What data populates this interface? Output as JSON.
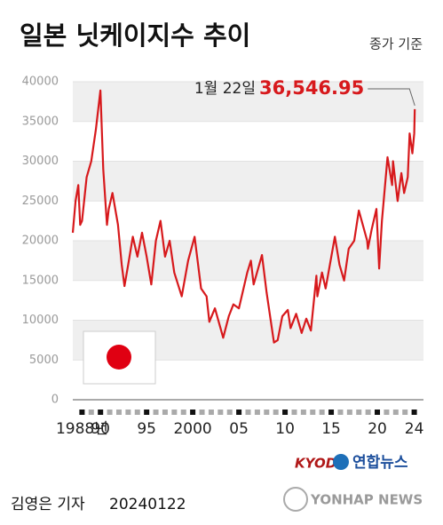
{
  "chart_data": {
    "type": "line",
    "title": "일본 닛케이지수 추이",
    "subtitle": "종가 기준",
    "annotation": {
      "date": "1월 22일",
      "value_label": "36,546.95"
    },
    "series": [
      {
        "name": "닛케이지수",
        "color": "#d7191c",
        "x": [
          1987.0,
          1987.3,
          1987.6,
          1987.8,
          1988.0,
          1988.5,
          1989.0,
          1989.5,
          1989.99,
          1990.3,
          1990.7,
          1990.9,
          1991.3,
          1991.9,
          1992.3,
          1992.6,
          1993.0,
          1993.5,
          1994.0,
          1994.5,
          1995.0,
          1995.5,
          1996.0,
          1996.5,
          1997.0,
          1997.5,
          1998.0,
          1998.8,
          1999.5,
          2000.2,
          2000.9,
          2001.5,
          2001.8,
          2002.4,
          2003.3,
          2003.9,
          2004.4,
          2005.0,
          2005.9,
          2006.3,
          2006.6,
          2007.5,
          2008.0,
          2008.8,
          2009.2,
          2009.7,
          2010.3,
          2010.6,
          2011.2,
          2011.8,
          2012.3,
          2012.8,
          2013.4,
          2013.5,
          2014.0,
          2014.4,
          2015.4,
          2015.9,
          2016.4,
          2016.9,
          2017.5,
          2018.0,
          2018.9,
          2018.98,
          2019.4,
          2019.9,
          2020.2,
          2020.5,
          2021.1,
          2021.6,
          2021.7,
          2022.2,
          2022.6,
          2022.9,
          2023.3,
          2023.5,
          2023.8,
          2024.0,
          2024.06
        ],
        "values": [
          21000,
          25000,
          27000,
          22000,
          22500,
          28000,
          30000,
          34000,
          38900,
          29000,
          22000,
          24000,
          26000,
          22000,
          17000,
          14300,
          17000,
          20500,
          18000,
          21000,
          18000,
          14500,
          20000,
          22500,
          18000,
          20000,
          16000,
          13000,
          17500,
          20500,
          14000,
          13000,
          9800,
          11500,
          7800,
          10500,
          12000,
          11500,
          16000,
          17500,
          14500,
          18200,
          13500,
          7200,
          7500,
          10500,
          11300,
          9000,
          10800,
          8400,
          10200,
          8700,
          15600,
          13000,
          16000,
          14000,
          20500,
          17000,
          15000,
          19000,
          20000,
          23800,
          20000,
          19000,
          21500,
          24000,
          16500,
          22500,
          30500,
          27000,
          30000,
          25000,
          28500,
          26000,
          28000,
          33500,
          31000,
          33500,
          36546.95
        ]
      }
    ],
    "xlim": [
      1987,
      2025
    ],
    "xticks": [
      {
        "value": 1988,
        "label": "1988년"
      },
      {
        "value": 1990,
        "label": "90"
      },
      {
        "value": 1995,
        "label": "95"
      },
      2000,
      {
        "value": 2005,
        "label": "05"
      },
      {
        "value": 2010,
        "label": "10"
      },
      {
        "value": 2015,
        "label": "15"
      },
      {
        "value": 2020,
        "label": "20"
      },
      {
        "value": 2024,
        "label": "24"
      }
    ],
    "ylim": [
      0,
      40000
    ],
    "yticks": [
      0,
      5000,
      10000,
      15000,
      20000,
      25000,
      30000,
      35000,
      40000
    ],
    "grid": true
  },
  "credits": {
    "logo1": "KYODO",
    "logo2": "연합뉴스",
    "watermark": "YONHAP NEWS",
    "reporter": "김영은 기자",
    "date": "20240122"
  }
}
